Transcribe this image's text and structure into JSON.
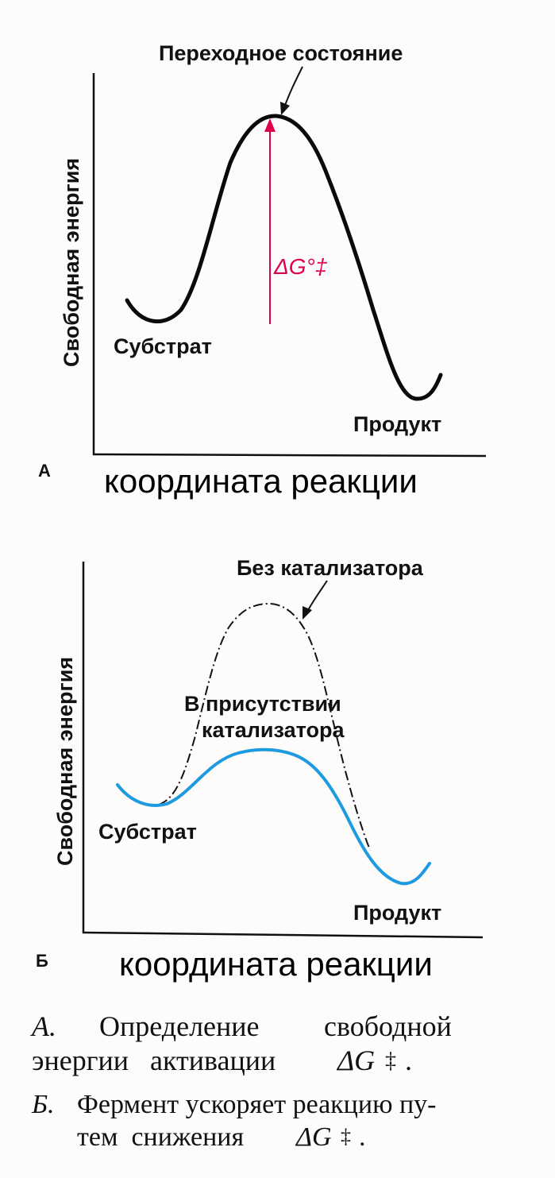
{
  "panel_a": {
    "panel_letter": "А",
    "y_axis_label": "Свободная энергия",
    "x_axis_label": "координата реакции",
    "transition_label": "Переходное состояние",
    "substrate_label": "Субстрат",
    "product_label": "Продукт",
    "delta_label": "ΔG°‡",
    "delta_color": "#e0004d"
  },
  "panel_b": {
    "panel_letter": "Б",
    "y_axis_label": "Свободная энергия",
    "x_axis_label": "координата реакции",
    "uncatalyzed_label": "Без катализатора",
    "catalyzed_label_line1": "В присутствии",
    "catalyzed_label_line2": "катализатора",
    "substrate_label": "Субстрат",
    "product_label": "Продукт",
    "catalyzed_color": "#1e9be0"
  },
  "caption": {
    "a_letter": "А.",
    "a_line1_words": [
      "Определение",
      "свободной"
    ],
    "a_line2_text": "энергии   активации",
    "a_symbol": "ΔG",
    "a_end": ".",
    "b_letter": "Б.",
    "b_line1_text": "Фермент ускоряет реакцию пу-",
    "b_line2_text": "тем  снижения",
    "b_symbol": "ΔG",
    "b_end": ".",
    "double_dagger": "‡"
  }
}
